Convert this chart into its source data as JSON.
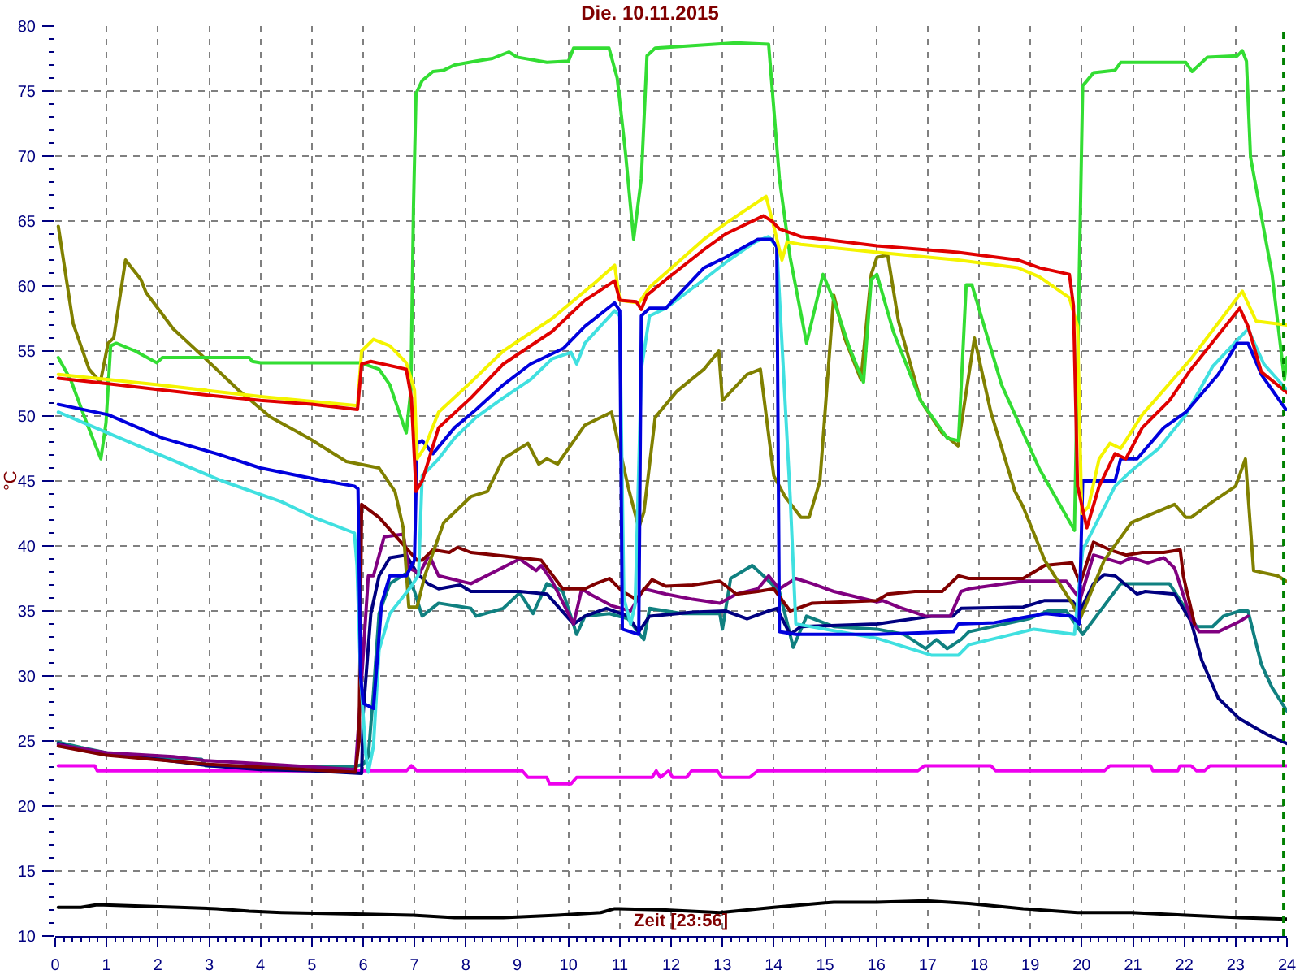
{
  "chart_data": {
    "type": "line",
    "title": "Die. 10.11.2015",
    "xlabel": "Zeit [23:56]",
    "ylabel": "°C",
    "xlim": [
      0,
      24
    ],
    "ylim": [
      10,
      80
    ],
    "grid": true,
    "xticks": [
      0,
      {
        "value": 0.17,
        "label": null
      },
      {
        "value": 0.33,
        "label": null
      },
      {
        "value": 0.5,
        "label": null
      },
      {
        "value": 0.67,
        "label": null
      },
      {
        "value": 0.83,
        "label": null
      },
      1,
      {
        "value": 1.17,
        "label": null
      },
      {
        "value": 1.33,
        "label": null
      },
      {
        "value": 1.5,
        "label": null
      },
      {
        "value": 1.67,
        "label": null
      },
      {
        "value": 1.83,
        "label": null
      },
      2,
      {
        "value": 2.17,
        "label": null
      },
      {
        "value": 2.33,
        "label": null
      },
      {
        "value": 2.5,
        "label": null
      },
      {
        "value": 2.67,
        "label": null
      },
      {
        "value": 2.83,
        "label": null
      },
      3,
      {
        "value": 3.17,
        "label": null
      },
      {
        "value": 3.33,
        "label": null
      },
      {
        "value": 3.5,
        "label": null
      },
      {
        "value": 3.67,
        "label": null
      },
      {
        "value": 3.83,
        "label": null
      },
      4,
      {
        "value": 4.17,
        "label": null
      },
      {
        "value": 4.33,
        "label": null
      },
      {
        "value": 4.5,
        "label": null
      },
      {
        "value": 4.67,
        "label": null
      },
      {
        "value": 4.83,
        "label": null
      },
      5,
      {
        "value": 5.17,
        "label": null
      },
      {
        "value": 5.33,
        "label": null
      },
      {
        "value": 5.5,
        "label": null
      },
      {
        "value": 5.67,
        "label": null
      },
      {
        "value": 5.83,
        "label": null
      },
      6,
      {
        "value": 6.17,
        "label": null
      },
      {
        "value": 6.33,
        "label": null
      },
      {
        "value": 6.5,
        "label": null
      },
      {
        "value": 6.67,
        "label": null
      },
      {
        "value": 6.83,
        "label": null
      },
      7,
      {
        "value": 7.17,
        "label": null
      },
      {
        "value": 7.33,
        "label": null
      },
      {
        "value": 7.5,
        "label": null
      },
      {
        "value": 7.67,
        "label": null
      },
      {
        "value": 7.83,
        "label": null
      },
      8,
      {
        "value": 8.17,
        "label": null
      },
      {
        "value": 8.33,
        "label": null
      },
      {
        "value": 8.5,
        "label": null
      },
      {
        "value": 8.67,
        "label": null
      },
      {
        "value": 8.83,
        "label": null
      },
      9,
      {
        "value": 9.17,
        "label": null
      },
      {
        "value": 9.33,
        "label": null
      },
      {
        "value": 9.5,
        "label": null
      },
      {
        "value": 9.67,
        "label": null
      },
      {
        "value": 9.83,
        "label": null
      },
      10,
      {
        "value": 10.17,
        "label": null
      },
      {
        "value": 10.33,
        "label": null
      },
      {
        "value": 10.5,
        "label": null
      },
      {
        "value": 10.67,
        "label": null
      },
      {
        "value": 10.83,
        "label": null
      },
      11,
      {
        "value": 11.17,
        "label": null
      },
      {
        "value": 11.33,
        "label": null
      },
      {
        "value": 11.5,
        "label": null
      },
      {
        "value": 11.67,
        "label": null
      },
      {
        "value": 11.83,
        "label": null
      },
      12,
      {
        "value": 12.17,
        "label": null
      },
      {
        "value": 12.33,
        "label": null
      },
      {
        "value": 12.5,
        "label": null
      },
      {
        "value": 12.67,
        "label": null
      },
      {
        "value": 12.83,
        "label": null
      },
      13,
      {
        "value": 13.17,
        "label": null
      },
      {
        "value": 13.33,
        "label": null
      },
      {
        "value": 13.5,
        "label": null
      },
      {
        "value": 13.67,
        "label": null
      },
      {
        "value": 13.83,
        "label": null
      },
      14,
      {
        "value": 14.17,
        "label": null
      },
      {
        "value": 14.33,
        "label": null
      },
      {
        "value": 14.5,
        "label": null
      },
      {
        "value": 14.67,
        "label": null
      },
      {
        "value": 14.83,
        "label": null
      },
      15,
      {
        "value": 15.17,
        "label": null
      },
      {
        "value": 15.33,
        "label": null
      },
      {
        "value": 15.5,
        "label": null
      },
      {
        "value": 15.67,
        "label": null
      },
      {
        "value": 15.83,
        "label": null
      },
      16,
      {
        "value": 16.17,
        "label": null
      },
      {
        "value": 16.33,
        "label": null
      },
      {
        "value": 16.5,
        "label": null
      },
      {
        "value": 16.67,
        "label": null
      },
      {
        "value": 16.83,
        "label": null
      },
      17,
      {
        "value": 17.17,
        "label": null
      },
      {
        "value": 17.33,
        "label": null
      },
      {
        "value": 17.5,
        "label": null
      },
      {
        "value": 17.67,
        "label": null
      },
      {
        "value": 17.83,
        "label": null
      },
      18,
      {
        "value": 18.17,
        "label": null
      },
      {
        "value": 18.33,
        "label": null
      },
      {
        "value": 18.5,
        "label": null
      },
      {
        "value": 18.67,
        "label": null
      },
      {
        "value": 18.83,
        "label": null
      },
      19,
      {
        "value": 19.17,
        "label": null
      },
      {
        "value": 19.33,
        "label": null
      },
      {
        "value": 19.5,
        "label": null
      },
      {
        "value": 19.67,
        "label": null
      },
      {
        "value": 19.83,
        "label": null
      },
      20,
      {
        "value": 20.17,
        "label": null
      },
      {
        "value": 20.33,
        "label": null
      },
      {
        "value": 20.5,
        "label": null
      },
      {
        "value": 20.67,
        "label": null
      },
      {
        "value": 20.83,
        "label": null
      },
      21,
      {
        "value": 21.17,
        "label": null
      },
      {
        "value": 21.33,
        "label": null
      },
      {
        "value": 21.5,
        "label": null
      },
      {
        "value": 21.67,
        "label": null
      },
      {
        "value": 21.83,
        "label": null
      },
      22,
      {
        "value": 22.17,
        "label": null
      },
      {
        "value": 22.33,
        "label": null
      },
      {
        "value": 22.5,
        "label": null
      },
      {
        "value": 22.67,
        "label": null
      },
      {
        "value": 22.83,
        "label": null
      },
      23,
      {
        "value": 23.17,
        "label": null
      },
      {
        "value": 23.33,
        "label": null
      },
      {
        "value": 23.5,
        "label": null
      },
      {
        "value": 23.67,
        "label": null
      },
      {
        "value": 23.83,
        "label": null
      },
      24
    ],
    "yticks": [
      10,
      {
        "value": 11,
        "label": null
      },
      {
        "value": 12,
        "label": null
      },
      {
        "value": 13,
        "label": null
      },
      {
        "value": 14,
        "label": null
      },
      15,
      {
        "value": 16,
        "label": null
      },
      {
        "value": 17,
        "label": null
      },
      {
        "value": 18,
        "label": null
      },
      {
        "value": 19,
        "label": null
      },
      20,
      {
        "value": 21,
        "label": null
      },
      {
        "value": 22,
        "label": null
      },
      {
        "value": 23,
        "label": null
      },
      {
        "value": 24,
        "label": null
      },
      25,
      {
        "value": 26,
        "label": null
      },
      {
        "value": 27,
        "label": null
      },
      {
        "value": 28,
        "label": null
      },
      {
        "value": 29,
        "label": null
      },
      30,
      {
        "value": 31,
        "label": null
      },
      {
        "value": 32,
        "label": null
      },
      {
        "value": 33,
        "label": null
      },
      {
        "value": 34,
        "label": null
      },
      35,
      {
        "value": 36,
        "label": null
      },
      {
        "value": 37,
        "label": null
      },
      {
        "value": 38,
        "label": null
      },
      {
        "value": 39,
        "label": null
      },
      40,
      {
        "value": 41,
        "label": null
      },
      {
        "value": 42,
        "label": null
      },
      {
        "value": 43,
        "label": null
      },
      {
        "value": 44,
        "label": null
      },
      45,
      {
        "value": 46,
        "label": null
      },
      {
        "value": 47,
        "label": null
      },
      {
        "value": 48,
        "label": null
      },
      {
        "value": 49,
        "label": null
      },
      50,
      {
        "value": 51,
        "label": null
      },
      {
        "value": 52,
        "label": null
      },
      {
        "value": 53,
        "label": null
      },
      {
        "value": 54,
        "label": null
      },
      55,
      {
        "value": 56,
        "label": null
      },
      {
        "value": 57,
        "label": null
      },
      {
        "value": 58,
        "label": null
      },
      {
        "value": 59,
        "label": null
      },
      60,
      {
        "value": 61,
        "label": null
      },
      {
        "value": 62,
        "label": null
      },
      {
        "value": 63,
        "label": null
      },
      {
        "value": 64,
        "label": null
      },
      65,
      {
        "value": 66,
        "label": null
      },
      {
        "value": 67,
        "label": null
      },
      {
        "value": 68,
        "label": null
      },
      {
        "value": 69,
        "label": null
      },
      70,
      {
        "value": 71,
        "label": null
      },
      {
        "value": 72,
        "label": null
      },
      {
        "value": 73,
        "label": null
      },
      {
        "value": 74,
        "label": null
      },
      75,
      {
        "value": 76,
        "label": null
      },
      {
        "value": 77,
        "label": null
      },
      {
        "value": 78,
        "label": null
      },
      {
        "value": 79,
        "label": null
      },
      80
    ],
    "ref_lines": [
      {
        "axis": "x",
        "value": 23.93,
        "color": "#008000",
        "line_style": "dashed"
      }
    ],
    "series": [
      {
        "color": "#000000",
        "x": [
          0.06,
          0.5,
          0.82,
          2.41,
          3.14,
          3.78,
          4.41,
          5.67,
          6.94,
          7.78,
          8.73,
          9.79,
          10.63,
          10.9,
          11.9,
          12.95,
          14.0,
          15.17,
          16.01,
          16.96,
          17.8,
          18.86,
          19.92,
          20.97,
          22.03,
          23.08,
          24.0
        ],
        "values": [
          12.2,
          12.2,
          12.4,
          12.2,
          12.1,
          11.9,
          11.8,
          11.7,
          11.6,
          11.4,
          11.4,
          11.6,
          11.8,
          12.1,
          12.0,
          11.8,
          12.2,
          12.6,
          12.6,
          12.7,
          12.5,
          12.1,
          11.8,
          11.8,
          11.6,
          11.4,
          11.3
        ]
      },
      {
        "color": "#ee00ee",
        "x": [
          0.06,
          0.77,
          0.82,
          6.84,
          6.94,
          7.05,
          9.1,
          9.21,
          9.58,
          9.63,
          10.05,
          10.16,
          11.63,
          11.71,
          11.79,
          11.95,
          12.03,
          12.3,
          12.4,
          12.9,
          12.99,
          13.53,
          13.69,
          16.8,
          16.94,
          18.23,
          18.33,
          20.44,
          20.55,
          21.34,
          21.39,
          21.87,
          21.92,
          22.13,
          22.24,
          22.39,
          22.5,
          24.0
        ],
        "values": [
          23.1,
          23.1,
          22.7,
          22.7,
          23.1,
          22.7,
          22.7,
          22.2,
          22.2,
          21.7,
          21.7,
          22.2,
          22.2,
          22.7,
          22.2,
          22.7,
          22.2,
          22.2,
          22.7,
          22.7,
          22.2,
          22.2,
          22.7,
          22.7,
          23.1,
          23.1,
          22.7,
          22.7,
          23.1,
          23.1,
          22.7,
          22.7,
          23.1,
          23.1,
          22.7,
          22.7,
          23.1,
          23.1
        ]
      },
      {
        "color": "#108080",
        "x": [
          0.06,
          0.5,
          1.24,
          2.85,
          2.93,
          5.8,
          6.0,
          6.1,
          6.2,
          6.31,
          6.52,
          6.84,
          7.0,
          7.15,
          7.47,
          8.1,
          8.2,
          8.73,
          9.05,
          9.31,
          9.58,
          9.89,
          10.16,
          10.32,
          10.8,
          11.16,
          11.47,
          11.58,
          12.22,
          12.95,
          13.0,
          13.16,
          13.58,
          13.8,
          14.11,
          14.38,
          14.64,
          15.17,
          16.01,
          16.54,
          16.96,
          17.17,
          17.38,
          17.65,
          17.8,
          18.97,
          19.34,
          19.7,
          20.02,
          20.76,
          21.71,
          21.92,
          22.24,
          22.55,
          22.76,
          23.08,
          23.24,
          23.5,
          23.71,
          24.0
        ],
        "values": [
          24.9,
          24.5,
          23.9,
          23.6,
          23.1,
          23.0,
          23.2,
          23.8,
          28.7,
          34.8,
          37.1,
          37.9,
          36.5,
          34.6,
          35.6,
          35.2,
          34.6,
          35.2,
          36.4,
          34.8,
          37.1,
          36.5,
          33.2,
          34.6,
          34.8,
          34.4,
          32.8,
          35.2,
          34.8,
          34.8,
          33.6,
          37.5,
          38.5,
          37.7,
          36.5,
          32.2,
          34.6,
          33.8,
          33.6,
          33.2,
          32.1,
          32.8,
          32.1,
          32.8,
          33.4,
          34.4,
          35.0,
          35.0,
          33.2,
          37.1,
          37.1,
          35.8,
          33.8,
          33.8,
          34.6,
          35.0,
          35.0,
          30.9,
          29.1,
          27.3
        ]
      },
      {
        "color": "#000080",
        "x": [
          0.06,
          0.5,
          1.0,
          2.0,
          3.0,
          4.0,
          5.0,
          5.97,
          6.0,
          6.15,
          6.31,
          6.52,
          6.84,
          7.05,
          7.26,
          7.47,
          7.89,
          8.1,
          9.05,
          9.58,
          10.1,
          10.32,
          10.74,
          11.16,
          11.37,
          11.58,
          12.42,
          13.06,
          13.48,
          13.9,
          14.06,
          14.32,
          14.53,
          16.01,
          17.07,
          17.49,
          17.65,
          18.86,
          19.28,
          19.81,
          19.97,
          20.23,
          20.44,
          20.65,
          21.08,
          21.24,
          21.81,
          22.13,
          22.34,
          22.66,
          23.08,
          23.61,
          24.0
        ],
        "values": [
          24.8,
          24.3,
          24.0,
          23.6,
          23.1,
          22.8,
          22.7,
          22.5,
          27.1,
          34.8,
          37.7,
          39.1,
          39.3,
          37.9,
          37.1,
          36.7,
          37.0,
          36.5,
          36.5,
          36.3,
          34.0,
          34.6,
          35.2,
          34.6,
          33.4,
          34.6,
          34.9,
          35.0,
          34.4,
          35.0,
          35.2,
          33.2,
          33.8,
          34.0,
          34.6,
          34.6,
          35.2,
          35.3,
          35.8,
          35.8,
          35.0,
          37.1,
          37.8,
          37.7,
          36.3,
          36.5,
          36.3,
          34.2,
          31.2,
          28.3,
          26.7,
          25.5,
          24.8
        ]
      },
      {
        "color": "#800080",
        "x": [
          0.06,
          1.0,
          2.3,
          2.9,
          4.2,
          5.85,
          5.94,
          6.1,
          6.2,
          6.41,
          6.78,
          6.89,
          7.1,
          7.26,
          7.31,
          7.47,
          8.1,
          9.05,
          9.37,
          9.47,
          9.68,
          10.1,
          10.26,
          10.42,
          10.84,
          11.21,
          11.47,
          11.9,
          12.42,
          12.95,
          13.27,
          13.69,
          13.9,
          14.11,
          14.43,
          14.75,
          15.17,
          16.01,
          16.12,
          16.43,
          16.96,
          17.44,
          17.65,
          17.8,
          18.86,
          19.7,
          19.97,
          20.23,
          20.76,
          20.97,
          21.29,
          21.6,
          21.81,
          22.13,
          22.29,
          22.66,
          23.08,
          23.24
        ],
        "values": [
          24.7,
          24.1,
          23.8,
          23.5,
          23.2,
          22.8,
          27.9,
          37.7,
          37.7,
          40.7,
          40.9,
          38.3,
          37.9,
          39.1,
          39.1,
          37.7,
          37.1,
          39.0,
          38.1,
          38.5,
          37.3,
          34.0,
          36.7,
          36.3,
          35.4,
          35.0,
          36.7,
          36.3,
          35.9,
          35.6,
          36.3,
          36.7,
          37.7,
          36.7,
          37.5,
          37.1,
          36.5,
          35.7,
          35.8,
          35.3,
          34.6,
          34.6,
          36.5,
          36.7,
          37.3,
          37.3,
          35.9,
          39.3,
          38.7,
          39.1,
          38.7,
          39.1,
          38.3,
          34.4,
          33.4,
          33.4,
          34.2,
          34.6
        ]
      },
      {
        "color": "#800000",
        "x": [
          0.06,
          1.0,
          3.0,
          5.85,
          5.92,
          5.97,
          6.31,
          7.05,
          7.15,
          7.36,
          7.68,
          7.84,
          8.1,
          9.05,
          9.47,
          9.89,
          10.32,
          10.53,
          10.8,
          11.05,
          11.32,
          11.63,
          11.9,
          12.42,
          12.95,
          13.27,
          13.69,
          14.0,
          14.32,
          14.75,
          16.01,
          16.22,
          16.75,
          17.28,
          17.6,
          17.8,
          18.86,
          19.28,
          19.81,
          19.97,
          20.23,
          20.55,
          20.86,
          21.18,
          21.6,
          21.92,
          21.98,
          22.2
        ],
        "values": [
          24.6,
          23.9,
          23.2,
          22.6,
          25.0,
          43.2,
          42.2,
          38.9,
          38.9,
          39.7,
          39.5,
          39.9,
          39.5,
          39.1,
          38.9,
          36.7,
          36.7,
          37.1,
          37.5,
          36.5,
          35.9,
          37.4,
          36.9,
          37.0,
          37.3,
          36.3,
          36.5,
          36.7,
          35.0,
          35.6,
          35.8,
          36.3,
          36.5,
          36.5,
          37.7,
          37.5,
          37.5,
          38.5,
          38.7,
          37.1,
          40.3,
          39.7,
          39.3,
          39.5,
          39.5,
          39.7,
          37.7,
          34.0
        ]
      },
      {
        "color": "#808000",
        "x": [
          0.06,
          0.35,
          0.66,
          0.88,
          1.03,
          1.14,
          1.37,
          1.67,
          1.77,
          2.3,
          2.93,
          3.57,
          4.2,
          4.94,
          5.67,
          6.31,
          6.62,
          6.78,
          6.89,
          7.05,
          7.2,
          7.57,
          8.1,
          8.42,
          8.73,
          9.21,
          9.42,
          9.58,
          9.79,
          10.32,
          10.84,
          10.95,
          11.16,
          11.37,
          11.47,
          11.69,
          12.11,
          12.64,
          12.93,
          13.0,
          13.48,
          13.74,
          14.0,
          14.22,
          14.53,
          14.69,
          14.9,
          15.17,
          15.38,
          15.7,
          15.9,
          16.01,
          16.22,
          16.43,
          16.86,
          17.28,
          17.59,
          17.91,
          18.23,
          18.7,
          18.86,
          19.28,
          19.81,
          19.97,
          20.23,
          20.44,
          20.97,
          21.81,
          22.03,
          22.13,
          22.55,
          23.0,
          23.19,
          23.35,
          23.82,
          23.98
        ],
        "values": [
          64.6,
          57.1,
          53.6,
          52.6,
          55.6,
          56.0,
          62.0,
          60.5,
          59.5,
          56.7,
          54.4,
          52.0,
          49.9,
          48.3,
          46.5,
          46.0,
          44.2,
          41.4,
          35.3,
          35.3,
          37.7,
          41.8,
          43.8,
          44.2,
          46.7,
          47.9,
          46.3,
          46.7,
          46.3,
          49.3,
          50.3,
          48.3,
          44.6,
          41.4,
          42.6,
          49.9,
          51.9,
          53.6,
          55.0,
          51.2,
          53.2,
          53.6,
          45.4,
          43.8,
          42.2,
          42.2,
          45.0,
          59.3,
          56.0,
          52.8,
          60.9,
          62.2,
          62.4,
          57.3,
          51.2,
          48.7,
          47.7,
          56.0,
          50.3,
          44.2,
          43.0,
          38.9,
          35.6,
          34.4,
          36.9,
          38.9,
          41.8,
          43.2,
          42.2,
          42.2,
          43.4,
          44.6,
          46.7,
          38.1,
          37.7,
          37.3
        ]
      },
      {
        "color": "#33dd33",
        "x": [
          0.06,
          0.3,
          0.61,
          0.89,
          0.99,
          1.08,
          1.19,
          1.56,
          1.98,
          2.09,
          3.78,
          3.84,
          4.0,
          5.94,
          6.31,
          6.52,
          6.84,
          6.93,
          6.98,
          7.03,
          7.15,
          7.36,
          7.57,
          7.78,
          8.2,
          8.52,
          8.84,
          9.0,
          9.58,
          10.0,
          10.1,
          10.79,
          10.95,
          11.11,
          11.27,
          11.42,
          11.53,
          11.69,
          13.27,
          13.9,
          14.11,
          14.32,
          14.64,
          14.96,
          15.17,
          15.48,
          15.75,
          15.9,
          16.01,
          16.33,
          16.86,
          17.38,
          17.6,
          17.75,
          17.86,
          18.44,
          19.18,
          19.86,
          20.02,
          20.23,
          20.65,
          20.76,
          22.03,
          22.15,
          22.45,
          23.03,
          23.13,
          23.21,
          23.29,
          23.71,
          23.95,
          24.0
        ],
        "values": [
          54.5,
          52.8,
          49.5,
          46.7,
          49.5,
          55.4,
          55.6,
          55.0,
          54.1,
          54.5,
          54.5,
          54.2,
          54.1,
          54.1,
          53.6,
          52.4,
          48.7,
          52.0,
          66.0,
          74.8,
          75.8,
          76.5,
          76.6,
          77.0,
          77.3,
          77.5,
          78.0,
          77.6,
          77.2,
          77.3,
          78.3,
          78.3,
          76.0,
          70.3,
          63.6,
          68.3,
          77.7,
          78.3,
          78.7,
          78.6,
          68.3,
          62.2,
          55.6,
          60.9,
          58.9,
          55.2,
          52.6,
          60.5,
          60.9,
          56.5,
          51.2,
          48.3,
          48.1,
          60.1,
          60.1,
          52.4,
          45.9,
          41.2,
          75.4,
          76.4,
          76.6,
          77.2,
          77.2,
          76.5,
          77.6,
          77.7,
          78.1,
          77.3,
          69.9,
          60.9,
          52.8,
          54.5
        ]
      },
      {
        "color": "#40e0e0",
        "x": [
          0.06,
          3.25,
          4.41,
          5.04,
          5.83,
          5.88,
          5.95,
          6.05,
          6.1,
          6.2,
          6.31,
          6.52,
          6.94,
          7.08,
          7.15,
          7.47,
          7.78,
          8.2,
          8.73,
          9.26,
          9.68,
          10.05,
          10.16,
          10.32,
          10.9,
          11.0,
          11.08,
          11.21,
          11.3,
          11.42,
          11.58,
          11.9,
          12.64,
          13.06,
          13.64,
          13.9,
          14.06,
          14.32,
          14.43,
          15.0,
          16.01,
          17.07,
          17.6,
          17.8,
          19.07,
          19.86,
          20.02,
          20.65,
          20.97,
          21.5,
          22.03,
          22.55,
          23.24,
          23.55,
          24.0
        ],
        "values": [
          50.3,
          45.0,
          43.4,
          42.2,
          41.0,
          38.5,
          30.0,
          24.0,
          22.6,
          24.6,
          32.0,
          34.8,
          36.9,
          37.8,
          45.4,
          46.7,
          48.3,
          49.9,
          51.4,
          52.8,
          54.4,
          54.9,
          54.0,
          55.6,
          58.1,
          57.7,
          36.0,
          34.0,
          35.5,
          53.6,
          57.7,
          58.3,
          60.5,
          61.8,
          63.4,
          63.8,
          63.0,
          43.8,
          34.0,
          33.6,
          32.9,
          31.6,
          31.6,
          32.4,
          33.6,
          33.2,
          39.7,
          44.6,
          45.8,
          47.5,
          50.1,
          53.8,
          56.7,
          54.0,
          52.0
        ]
      },
      {
        "color": "#0000dd",
        "x": [
          0.06,
          1.03,
          2.09,
          3.14,
          4.0,
          5.25,
          5.83,
          5.9,
          5.95,
          6.0,
          6.2,
          6.36,
          6.52,
          6.84,
          7.0,
          7.05,
          7.15,
          7.36,
          7.78,
          8.2,
          8.73,
          9.26,
          9.9,
          10.32,
          10.9,
          11.0,
          11.05,
          11.37,
          11.42,
          11.58,
          11.9,
          12.64,
          13.06,
          13.69,
          13.96,
          14.06,
          14.11,
          14.43,
          16.01,
          17.5,
          17.6,
          18.3,
          19.3,
          19.81,
          19.95,
          20.02,
          20.65,
          20.76,
          21.08,
          21.6,
          22.03,
          22.66,
          23.03,
          23.24,
          23.5,
          23.98
        ],
        "values": [
          50.9,
          50.1,
          48.3,
          47.1,
          46.0,
          45.0,
          44.6,
          44.4,
          30.0,
          27.9,
          27.5,
          35.6,
          37.7,
          37.7,
          38.9,
          47.9,
          48.1,
          47.1,
          49.1,
          50.5,
          52.4,
          54.0,
          55.2,
          56.9,
          58.7,
          58.1,
          33.6,
          33.2,
          57.7,
          58.3,
          58.3,
          61.4,
          62.2,
          63.6,
          63.6,
          63.0,
          33.4,
          33.2,
          33.2,
          33.4,
          34.0,
          34.1,
          34.8,
          34.6,
          34.0,
          45.0,
          45.0,
          46.7,
          46.7,
          49.1,
          50.3,
          53.2,
          55.6,
          55.6,
          53.2,
          50.5
        ]
      },
      {
        "color": "#f4f400",
        "x": [
          0.06,
          2.0,
          4.0,
          5.89,
          5.97,
          6.2,
          6.52,
          6.84,
          7.0,
          7.05,
          7.2,
          7.47,
          8.1,
          8.73,
          9.68,
          10.53,
          10.9,
          11.0,
          11.37,
          11.58,
          12.64,
          13.06,
          13.85,
          14.0,
          14.16,
          14.26,
          14.53,
          16.01,
          17.59,
          18.76,
          19.18,
          19.76,
          19.92,
          20.0,
          20.13,
          20.34,
          20.55,
          20.76,
          21.18,
          22.13,
          23.13,
          23.4,
          24.0
        ],
        "values": [
          53.2,
          52.4,
          51.5,
          50.8,
          55.0,
          55.9,
          55.4,
          54.1,
          52.0,
          46.7,
          47.6,
          50.3,
          52.6,
          55.0,
          57.5,
          60.3,
          61.6,
          58.9,
          58.7,
          59.9,
          63.6,
          64.8,
          66.9,
          64.6,
          62.0,
          63.4,
          63.2,
          62.6,
          62.0,
          61.4,
          60.7,
          59.1,
          56.9,
          42.5,
          43.0,
          46.7,
          47.9,
          47.5,
          50.1,
          54.4,
          59.6,
          57.3,
          57.0
        ]
      },
      {
        "color": "#e00000",
        "x": [
          0.06,
          1.0,
          2.09,
          3.0,
          4.0,
          5.0,
          5.89,
          5.97,
          6.15,
          6.84,
          6.94,
          7.03,
          7.15,
          7.47,
          8.1,
          8.73,
          9.68,
          10.32,
          10.9,
          11.0,
          11.32,
          11.42,
          11.53,
          11.9,
          12.64,
          13.06,
          13.8,
          13.96,
          14.11,
          14.53,
          16.01,
          17.59,
          18.76,
          19.18,
          19.76,
          19.84,
          19.92,
          20.1,
          20.34,
          20.65,
          20.86,
          21.18,
          21.71,
          22.13,
          23.08,
          23.24,
          23.5,
          24.0
        ],
        "values": [
          52.9,
          52.5,
          52.0,
          51.6,
          51.2,
          50.9,
          50.5,
          54.0,
          54.2,
          53.6,
          51.4,
          44.2,
          45.0,
          49.1,
          51.4,
          54.0,
          56.5,
          58.9,
          60.4,
          58.9,
          58.8,
          58.2,
          59.3,
          60.5,
          62.8,
          64.0,
          65.4,
          65.0,
          64.4,
          63.8,
          63.1,
          62.6,
          62.0,
          61.4,
          60.9,
          58.5,
          44.6,
          41.4,
          44.6,
          47.1,
          46.7,
          49.1,
          51.2,
          53.6,
          58.3,
          56.9,
          53.4,
          51.8
        ]
      }
    ]
  }
}
